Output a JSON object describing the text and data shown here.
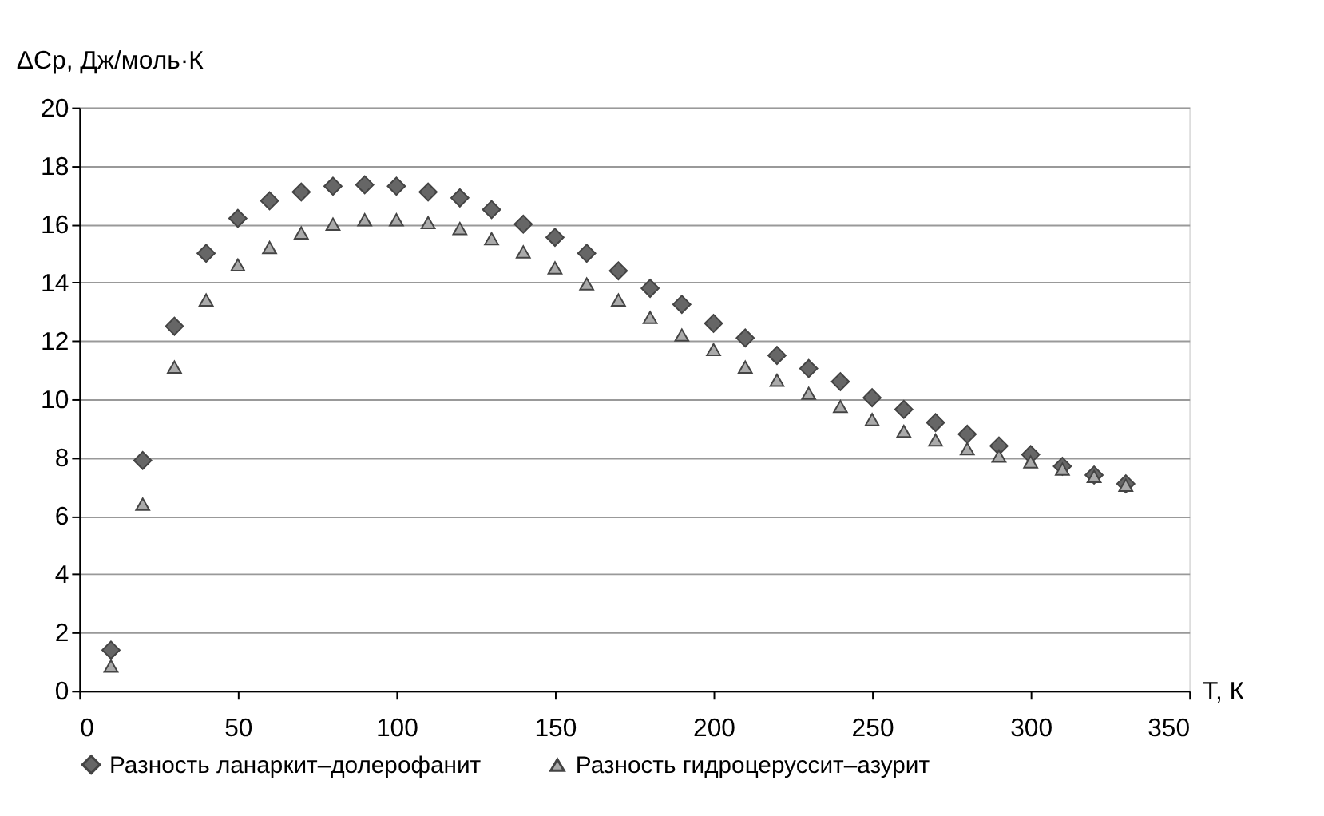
{
  "chart_data": {
    "type": "scatter",
    "xlabel": "T, К",
    "ylabel": "ΔCp, Дж/моль·К",
    "x": [
      10,
      20,
      30,
      40,
      50,
      60,
      70,
      80,
      90,
      100,
      110,
      120,
      130,
      140,
      150,
      160,
      170,
      180,
      190,
      200,
      210,
      220,
      230,
      240,
      250,
      260,
      270,
      280,
      290,
      300,
      310,
      320,
      330
    ],
    "series": [
      {
        "name": "Разность ланаркит–долерофанит",
        "color": "#666666",
        "marker": "diamond",
        "values": [
          1.4,
          7.9,
          12.5,
          15.0,
          16.2,
          16.8,
          17.1,
          17.3,
          17.35,
          17.3,
          17.1,
          16.9,
          16.5,
          16.0,
          15.55,
          15.0,
          14.4,
          13.8,
          13.25,
          12.6,
          12.1,
          11.5,
          11.05,
          10.6,
          10.05,
          9.65,
          9.2,
          8.8,
          8.4,
          8.1,
          7.7,
          7.4,
          7.1
        ]
      },
      {
        "name": "Разность гидроцеруссит–азурит",
        "color": "#aaaaaa",
        "marker": "triangle",
        "values": [
          0.85,
          6.4,
          11.1,
          13.4,
          14.6,
          15.2,
          15.7,
          16.0,
          16.15,
          16.15,
          16.05,
          15.85,
          15.5,
          15.05,
          14.5,
          13.95,
          13.4,
          12.8,
          12.2,
          11.7,
          11.1,
          10.65,
          10.2,
          9.75,
          9.3,
          8.9,
          8.6,
          8.3,
          8.05,
          7.85,
          7.6,
          7.35,
          7.05
        ]
      }
    ],
    "xlim": [
      0,
      350
    ],
    "xticks": [
      0,
      50,
      100,
      150,
      200,
      250,
      300,
      350
    ],
    "ylim": [
      0,
      20
    ],
    "yticks": [
      0,
      2,
      4,
      6,
      8,
      10,
      12,
      14,
      16,
      18,
      20
    ],
    "grid": "y",
    "legend": "bottom"
  }
}
